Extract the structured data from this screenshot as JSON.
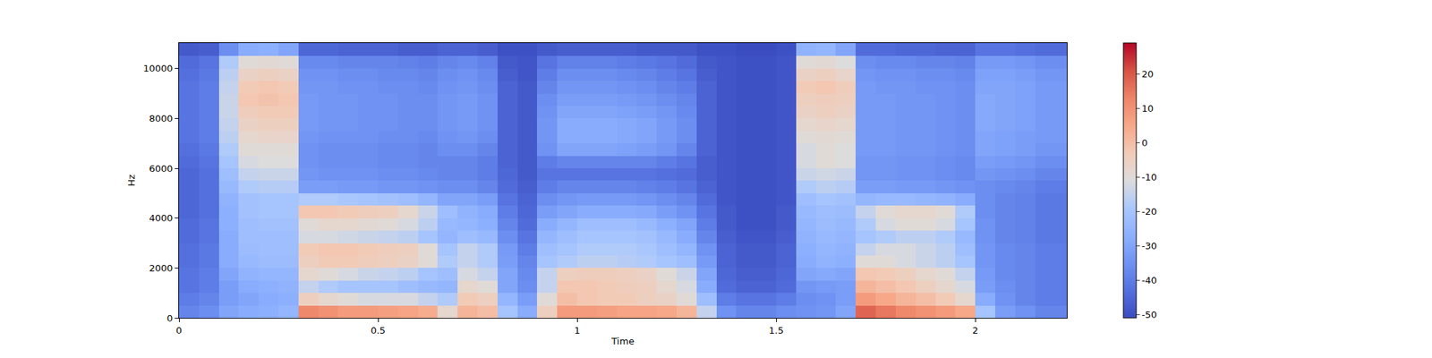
{
  "chart_data": {
    "type": "heatmap",
    "xlabel": "Time",
    "ylabel": "Hz",
    "x": [
      0,
      0.05,
      0.1,
      0.15,
      0.2,
      0.25,
      0.3,
      0.35,
      0.4,
      0.45,
      0.5,
      0.55,
      0.6,
      0.65,
      0.7,
      0.75,
      0.8,
      0.85,
      0.9,
      0.95,
      1.0,
      1.05,
      1.1,
      1.15,
      1.2,
      1.25,
      1.3,
      1.35,
      1.4,
      1.45,
      1.5,
      1.55,
      1.6,
      1.65,
      1.7,
      1.75,
      1.8,
      1.85,
      1.9,
      1.95,
      2.0,
      2.05,
      2.1,
      2.15,
      2.23
    ],
    "y": [
      0,
      500,
      1000,
      1500,
      2000,
      2500,
      3000,
      3500,
      4000,
      4500,
      5000,
      5500,
      6000,
      6500,
      7000,
      7500,
      8000,
      8500,
      9000,
      9500,
      10000,
      10500,
      11025
    ],
    "xlim": [
      0,
      2.23
    ],
    "xticks": [
      0,
      0.5,
      1,
      1.5,
      2
    ],
    "ylim": [
      0,
      11025
    ],
    "yticks": [
      0,
      2000,
      4000,
      6000,
      8000,
      10000
    ],
    "colorbar_range": [
      -51,
      29
    ],
    "colorbar_ticks": [
      -50,
      -40,
      -30,
      -20,
      -10,
      0,
      10,
      20
    ],
    "z": [
      [
        -38,
        -36,
        -30,
        -28,
        -27,
        -25,
        12,
        10,
        8,
        8,
        7,
        6,
        4,
        -8,
        2,
        0,
        -20,
        -28,
        -5,
        8,
        8,
        7,
        6,
        6,
        5,
        2,
        -15,
        -35,
        -38,
        -38,
        -36,
        -35,
        -34,
        -30,
        18,
        15,
        12,
        10,
        8,
        5,
        -20,
        -32,
        -35,
        -38
      ],
      [
        -40,
        -38,
        -32,
        -30,
        -28,
        -27,
        -5,
        -8,
        -10,
        -12,
        -12,
        -12,
        -15,
        -18,
        -3,
        -5,
        -25,
        -32,
        -10,
        0,
        -2,
        -3,
        -3,
        -5,
        -6,
        -10,
        -22,
        -40,
        -42,
        -42,
        -40,
        -36,
        -35,
        -32,
        8,
        5,
        2,
        0,
        -3,
        -8,
        -28,
        -35,
        -38,
        -40
      ],
      [
        -42,
        -40,
        -32,
        -28,
        -27,
        -26,
        -15,
        -18,
        -20,
        -20,
        -20,
        -22,
        -24,
        -25,
        -8,
        -10,
        -30,
        -36,
        -15,
        -2,
        -2,
        -3,
        -4,
        -5,
        -8,
        -12,
        -28,
        -44,
        -46,
        -46,
        -44,
        -34,
        -33,
        -32,
        2,
        0,
        -2,
        -5,
        -8,
        -12,
        -32,
        -36,
        -38,
        -40
      ],
      [
        -42,
        -40,
        -30,
        -26,
        -25,
        -25,
        -8,
        -10,
        -12,
        -14,
        -15,
        -16,
        -20,
        -22,
        -12,
        -15,
        -30,
        -37,
        -15,
        -5,
        -4,
        -4,
        -5,
        -6,
        -10,
        -14,
        -30,
        -45,
        -47,
        -47,
        -45,
        -30,
        -29,
        -30,
        -2,
        -3,
        -5,
        -8,
        -10,
        -15,
        -33,
        -37,
        -38,
        -40
      ],
      [
        -43,
        -41,
        -28,
        -24,
        -23,
        -23,
        -5,
        -3,
        -3,
        -4,
        -5,
        -6,
        -10,
        -18,
        -15,
        -18,
        -32,
        -38,
        -20,
        -18,
        -16,
        -16,
        -17,
        -18,
        -20,
        -22,
        -33,
        -46,
        -48,
        -48,
        -46,
        -28,
        -26,
        -27,
        -10,
        -10,
        -12,
        -14,
        -16,
        -20,
        -34,
        -37,
        -38,
        -40
      ],
      [
        -43,
        -41,
        -28,
        -23,
        -22,
        -22,
        -3,
        -2,
        -2,
        -3,
        -4,
        -5,
        -10,
        -20,
        -15,
        -18,
        -33,
        -40,
        -22,
        -20,
        -18,
        -18,
        -18,
        -19,
        -22,
        -25,
        -35,
        -46,
        -48,
        -48,
        -46,
        -27,
        -25,
        -26,
        -15,
        -12,
        -12,
        -14,
        -16,
        -22,
        -34,
        -37,
        -38,
        -40
      ],
      [
        -44,
        -42,
        -28,
        -22,
        -22,
        -22,
        -12,
        -12,
        -13,
        -14,
        -15,
        -16,
        -20,
        -25,
        -22,
        -24,
        -36,
        -42,
        -25,
        -22,
        -20,
        -20,
        -20,
        -21,
        -24,
        -28,
        -38,
        -47,
        -49,
        -49,
        -47,
        -26,
        -24,
        -25,
        -20,
        -18,
        -16,
        -16,
        -18,
        -24,
        -35,
        -38,
        -39,
        -41
      ],
      [
        -44,
        -42,
        -27,
        -22,
        -21,
        -21,
        -10,
        -8,
        -8,
        -9,
        -10,
        -12,
        -16,
        -24,
        -25,
        -27,
        -38,
        -44,
        -28,
        -25,
        -22,
        -22,
        -22,
        -24,
        -27,
        -30,
        -40,
        -48,
        -50,
        -50,
        -48,
        -25,
        -23,
        -24,
        -18,
        -12,
        -10,
        -10,
        -12,
        -20,
        -35,
        -38,
        -39,
        -41
      ],
      [
        -45,
        -43,
        -27,
        -21,
        -20,
        -20,
        -2,
        -2,
        -3,
        -4,
        -5,
        -8,
        -14,
        -22,
        -26,
        -28,
        -40,
        -45,
        -32,
        -30,
        -28,
        -28,
        -28,
        -29,
        -32,
        -35,
        -42,
        -48,
        -50,
        -50,
        -48,
        -24,
        -22,
        -23,
        -15,
        -10,
        -8,
        -8,
        -10,
        -18,
        -36,
        -38,
        -39,
        -41
      ],
      [
        -45,
        -43,
        -26,
        -21,
        -20,
        -20,
        -18,
        -18,
        -19,
        -20,
        -21,
        -22,
        -25,
        -30,
        -30,
        -32,
        -42,
        -46,
        -36,
        -34,
        -33,
        -33,
        -33,
        -34,
        -36,
        -38,
        -44,
        -49,
        -50,
        -50,
        -49,
        -22,
        -20,
        -21,
        -25,
        -24,
        -24,
        -25,
        -26,
        -28,
        -36,
        -38,
        -39,
        -41
      ],
      [
        -45,
        -43,
        -24,
        -18,
        -17,
        -17,
        -32,
        -32,
        -33,
        -33,
        -34,
        -34,
        -35,
        -36,
        -36,
        -38,
        -44,
        -47,
        -40,
        -38,
        -38,
        -38,
        -38,
        -39,
        -40,
        -42,
        -46,
        -49,
        -50,
        -50,
        -49,
        -18,
        -16,
        -17,
        -32,
        -32,
        -33,
        -33,
        -34,
        -35,
        -36,
        -37,
        -38,
        -40
      ],
      [
        -45,
        -43,
        -22,
        -15,
        -14,
        -14,
        -34,
        -35,
        -35,
        -35,
        -36,
        -36,
        -37,
        -38,
        -38,
        -40,
        -45,
        -48,
        -42,
        -42,
        -42,
        -42,
        -42,
        -42,
        -43,
        -44,
        -47,
        -49,
        -50,
        -50,
        -49,
        -14,
        -13,
        -14,
        -34,
        -34,
        -35,
        -35,
        -36,
        -37,
        -34,
        -35,
        -36,
        -38
      ],
      [
        -44,
        -42,
        -20,
        -12,
        -11,
        -11,
        -35,
        -36,
        -36,
        -36,
        -37,
        -37,
        -38,
        -38,
        -38,
        -40,
        -46,
        -48,
        -40,
        -38,
        -38,
        -38,
        -38,
        -38,
        -40,
        -42,
        -47,
        -49,
        -50,
        -50,
        -49,
        -12,
        -10,
        -11,
        -34,
        -34,
        -35,
        -35,
        -36,
        -37,
        -32,
        -33,
        -34,
        -36
      ],
      [
        -43,
        -41,
        -18,
        -10,
        -10,
        -10,
        -35,
        -36,
        -36,
        -36,
        -37,
        -37,
        -38,
        -36,
        -36,
        -38,
        -46,
        -48,
        -35,
        -30,
        -30,
        -30,
        -31,
        -32,
        -34,
        -38,
        -46,
        -49,
        -50,
        -50,
        -49,
        -12,
        -10,
        -11,
        -33,
        -33,
        -34,
        -34,
        -35,
        -36,
        -30,
        -31,
        -32,
        -34
      ],
      [
        -42,
        -40,
        -16,
        -8,
        -7,
        -7,
        -34,
        -35,
        -35,
        -35,
        -36,
        -36,
        -37,
        -35,
        -34,
        -36,
        -46,
        -48,
        -34,
        -28,
        -28,
        -28,
        -29,
        -30,
        -33,
        -36,
        -46,
        -49,
        -50,
        -50,
        -49,
        -10,
        -9,
        -10,
        -33,
        -33,
        -34,
        -34,
        -35,
        -36,
        -30,
        -31,
        -32,
        -33
      ],
      [
        -42,
        -40,
        -15,
        -6,
        -5,
        -5,
        -33,
        -34,
        -34,
        -35,
        -35,
        -36,
        -36,
        -34,
        -33,
        -35,
        -46,
        -48,
        -34,
        -28,
        -28,
        -28,
        -29,
        -30,
        -33,
        -36,
        -46,
        -49,
        -50,
        -50,
        -49,
        -8,
        -7,
        -8,
        -33,
        -33,
        -34,
        -34,
        -35,
        -36,
        -29,
        -30,
        -31,
        -33
      ],
      [
        -42,
        -40,
        -14,
        -4,
        -3,
        -3,
        -33,
        -34,
        -34,
        -35,
        -35,
        -36,
        -36,
        -34,
        -33,
        -35,
        -46,
        -48,
        -35,
        -30,
        -30,
        -30,
        -31,
        -32,
        -34,
        -37,
        -46,
        -49,
        -50,
        -50,
        -49,
        -6,
        -5,
        -6,
        -33,
        -33,
        -34,
        -34,
        -35,
        -36,
        -29,
        -30,
        -31,
        -33
      ],
      [
        -42,
        -40,
        -14,
        -2,
        -1,
        -2,
        -33,
        -34,
        -34,
        -35,
        -35,
        -36,
        -36,
        -34,
        -33,
        -35,
        -46,
        -48,
        -36,
        -32,
        -32,
        -32,
        -33,
        -34,
        -36,
        -38,
        -46,
        -49,
        -50,
        -50,
        -49,
        -5,
        -4,
        -5,
        -33,
        -33,
        -34,
        -34,
        -35,
        -36,
        -29,
        -30,
        -31,
        -33
      ],
      [
        -42,
        -40,
        -15,
        -3,
        -2,
        -3,
        -34,
        -34,
        -35,
        -35,
        -36,
        -36,
        -37,
        -35,
        -34,
        -36,
        -46,
        -48,
        -38,
        -34,
        -34,
        -34,
        -35,
        -36,
        -38,
        -40,
        -46,
        -49,
        -50,
        -50,
        -49,
        -3,
        -2,
        -4,
        -33,
        -34,
        -34,
        -35,
        -35,
        -36,
        -30,
        -30,
        -31,
        -33
      ],
      [
        -43,
        -41,
        -16,
        -6,
        -5,
        -6,
        -35,
        -35,
        -36,
        -36,
        -37,
        -37,
        -38,
        -36,
        -35,
        -37,
        -47,
        -49,
        -40,
        -36,
        -36,
        -36,
        -37,
        -38,
        -40,
        -42,
        -47,
        -49,
        -50,
        -50,
        -49,
        -6,
        -5,
        -7,
        -34,
        -35,
        -35,
        -36,
        -36,
        -37,
        -31,
        -31,
        -32,
        -34
      ],
      [
        -44,
        -42,
        -18,
        -10,
        -9,
        -10,
        -37,
        -37,
        -38,
        -38,
        -38,
        -39,
        -40,
        -38,
        -37,
        -39,
        -48,
        -49,
        -42,
        -39,
        -39,
        -39,
        -40,
        -41,
        -42,
        -44,
        -48,
        -49,
        -50,
        -50,
        -49,
        -10,
        -9,
        -11,
        -36,
        -37,
        -37,
        -38,
        -38,
        -39,
        -33,
        -33,
        -34,
        -36
      ],
      [
        -48,
        -47,
        -36,
        -28,
        -27,
        -30,
        -45,
        -45,
        -46,
        -46,
        -46,
        -47,
        -47,
        -46,
        -46,
        -47,
        -50,
        -50,
        -48,
        -47,
        -47,
        -47,
        -47,
        -48,
        -48,
        -48,
        -50,
        -50,
        -51,
        -51,
        -50,
        -26,
        -25,
        -30,
        -44,
        -44,
        -45,
        -45,
        -46,
        -46,
        -42,
        -42,
        -43,
        -44
      ]
    ]
  }
}
